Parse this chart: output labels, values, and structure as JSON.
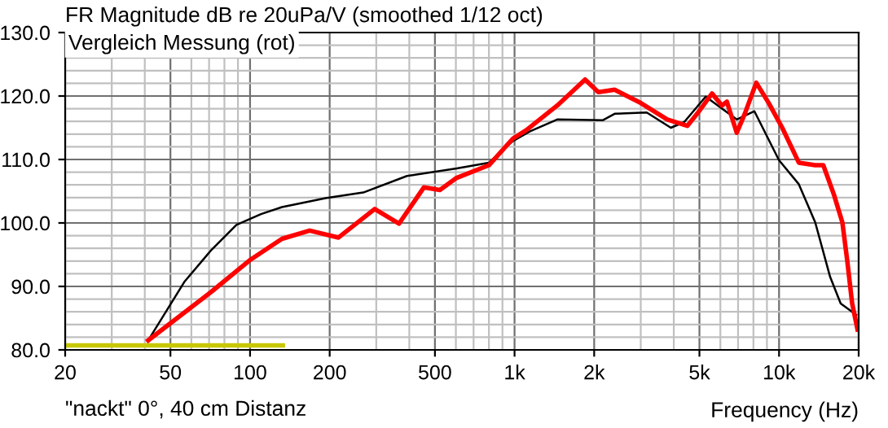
{
  "chart_data": {
    "type": "line",
    "title": "FR Magnitude dB re 20uPa/V (smoothed 1/12 oct)",
    "xlabel": "Frequency (Hz)",
    "annotations": [
      "Vergleich Messung (rot)",
      "\"nackt\" 0°, 40 cm Distanz"
    ],
    "log": "x",
    "grid": true,
    "marker": "none",
    "line_style": "solid",
    "xlim": [
      20,
      20000
    ],
    "xticks": [
      20,
      50,
      100,
      200,
      500,
      {
        "value": 1000,
        "label": "1k"
      },
      {
        "value": 2000,
        "label": "2k"
      },
      {
        "value": 5000,
        "label": "5k"
      },
      {
        "value": 10000,
        "label": "10k"
      },
      {
        "value": 20000,
        "label": "20k"
      }
    ],
    "ylim": [
      80,
      130
    ],
    "yticks": [
      {
        "value": 80,
        "label": "80.0"
      },
      {
        "value": 90,
        "label": "90.0"
      },
      {
        "value": 100,
        "label": "100.0"
      },
      {
        "value": 110,
        "label": "110.0"
      },
      {
        "value": 120,
        "label": "120.0"
      },
      {
        "value": 130,
        "label": "130.0"
      }
    ],
    "series": [
      {
        "color": "#c8c800",
        "x": [
          20,
          133
        ],
        "values": [
          80.7,
          80.7
        ]
      },
      {
        "color": "#000000",
        "x": [
          41.2,
          56.4,
          71.6,
          88.8,
          110,
          132,
          193,
          268,
          392,
          604,
          800,
          986,
          1140,
          1450,
          2160,
          2390,
          3160,
          3900,
          4380,
          5280,
          6920,
          8070,
          9990,
          11880,
          13700,
          15600,
          17100,
          19600
        ],
        "values": [
          81.5,
          90.7,
          95.8,
          99.7,
          101.4,
          102.5,
          103.9,
          104.8,
          107.4,
          108.6,
          109.5,
          112.9,
          114.4,
          116.3,
          116.2,
          117.2,
          117.4,
          115.0,
          115.9,
          119.9,
          116.3,
          117.6,
          109.9,
          106.1,
          100.1,
          91.5,
          87.3,
          85.5
        ]
      },
      {
        "color": "#ff0000",
        "x": [
          41.2,
          71.6,
          99.5,
          132,
          168,
          216,
          296,
          366,
          454,
          522,
          604,
          800,
          986,
          1106,
          1450,
          1848,
          2074,
          2390,
          3000,
          3780,
          4500,
          4900,
          5580,
          6080,
          6350,
          6920,
          7420,
          8200,
          9140,
          10280,
          11880,
          13700,
          14700,
          16140,
          17350,
          18100,
          18900,
          19800
        ],
        "values": [
          81.5,
          89.2,
          94.1,
          97.5,
          98.8,
          97.7,
          102.2,
          99.9,
          105.6,
          105.2,
          107.1,
          109.1,
          113.3,
          114.6,
          118.5,
          122.6,
          120.6,
          121.0,
          118.9,
          116.3,
          115.3,
          117.2,
          120.4,
          118.5,
          119.1,
          114.2,
          117.2,
          122.1,
          118.9,
          115.0,
          109.5,
          109.1,
          109.1,
          104.4,
          100.1,
          94.1,
          87.3,
          83.2
        ]
      }
    ]
  }
}
